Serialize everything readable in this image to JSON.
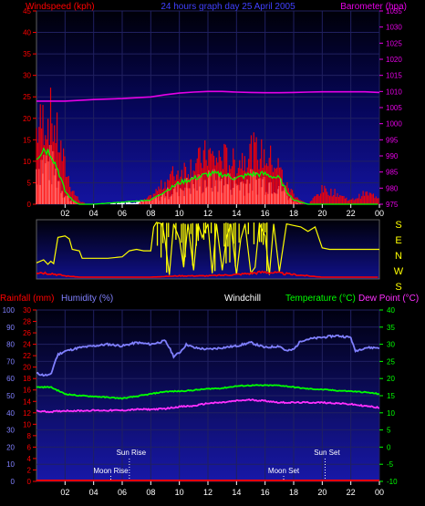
{
  "header": {
    "left": "Windspeed (kph)",
    "center": "24 hours graph day  25 April 2005",
    "right": "Barometer (hpa)"
  },
  "colors": {
    "wind": "#ff0000",
    "gust": "#ff0000",
    "avg_wind": "#00ff00",
    "wind_fill": "#ffffff",
    "barometer": "#e600e6",
    "direction": "#ffff00",
    "direction_speed": "#ff0000",
    "temperature": "#00ff00",
    "dew_point": "#ff30ff",
    "humidity": "#8080ff",
    "rainfall": "#ff0000",
    "windchill": "#ffffff",
    "axis_blue": "#8080ff",
    "axis_green": "#00ff00",
    "axis_red": "#ff0000",
    "axis_magenta": "#ff30ff",
    "grid": "#202060",
    "plot_bg_top": "#000010",
    "plot_bg_bottom": "#1818a0"
  },
  "chart_data": [
    {
      "type": "line",
      "title": "24 hours graph day  25 April 2005",
      "ylabel": "Windspeed (kph)",
      "y2label": "Barometer (hpa)",
      "ylim": [
        0,
        45
      ],
      "y2lim": [
        975,
        1035
      ],
      "y_ticks": [
        "0",
        "5",
        "10",
        "15",
        "20",
        "25",
        "30",
        "35",
        "40",
        "45"
      ],
      "y2_ticks": [
        "975",
        "980",
        "985",
        "990",
        "995",
        "1000",
        "1005",
        "1010",
        "1015",
        "1020",
        "1025",
        "1030",
        "1035"
      ],
      "x_ticks": [
        "02",
        "04",
        "06",
        "08",
        "10",
        "12",
        "14",
        "16",
        "18",
        "20",
        "22",
        "00"
      ],
      "xlim": [
        0,
        24
      ],
      "series": [
        {
          "name": "Barometer (hpa)",
          "axis": "right",
          "x": [
            0,
            2,
            4,
            6,
            8,
            9,
            10,
            11,
            12,
            13,
            14,
            15,
            16,
            17,
            18,
            19,
            20,
            21,
            22,
            23,
            24
          ],
          "values": [
            1007,
            1007,
            1007.5,
            1007.8,
            1008.3,
            1009,
            1009.5,
            1009.8,
            1010,
            1010,
            1009.8,
            1009.7,
            1009.6,
            1009.6,
            1009.7,
            1009.8,
            1009.9,
            1009.9,
            1009.9,
            1009.9,
            1009.7
          ]
        },
        {
          "name": "Wind gust (kph)",
          "axis": "left",
          "x": [
            0,
            0.5,
            1,
            1.5,
            2,
            2.5,
            3,
            3.5,
            4,
            5,
            6,
            7,
            8,
            8.5,
            9,
            9.5,
            10,
            10.5,
            11,
            11.5,
            12,
            12.5,
            13,
            13.5,
            14,
            14.5,
            15,
            15.5,
            16,
            16.5,
            17,
            17.5,
            18,
            18.5,
            19,
            20,
            21,
            22,
            23,
            24
          ],
          "values": [
            20,
            23,
            24,
            18,
            10,
            4,
            1,
            0,
            0,
            0,
            0,
            0,
            2,
            4,
            6,
            8,
            9,
            10,
            11,
            12,
            14,
            12,
            13,
            12,
            11,
            13,
            15,
            14,
            13,
            12,
            10,
            5,
            3,
            1,
            0,
            4,
            3,
            1,
            3,
            2
          ]
        },
        {
          "name": "Average windspeed (kph)",
          "axis": "left",
          "x": [
            0,
            0.5,
            1,
            1.5,
            2,
            2.5,
            3,
            4,
            8,
            9,
            10,
            11,
            12,
            13,
            14,
            15,
            16,
            17,
            17.5,
            18,
            19,
            24
          ],
          "values": [
            11,
            13,
            12,
            8,
            3,
            1,
            0,
            0,
            1,
            3,
            5,
            6,
            7,
            7,
            6,
            7,
            7,
            6,
            3,
            1,
            0,
            0
          ]
        }
      ]
    },
    {
      "type": "scatter",
      "ylabel": "Wind direction",
      "y_ticks": [
        "S",
        "E",
        "N",
        "W",
        "S"
      ],
      "x_ticks": [
        "02",
        "04",
        "06",
        "08",
        "10",
        "12",
        "14",
        "16",
        "18",
        "20",
        "22",
        "00"
      ],
      "xlim": [
        0,
        24
      ],
      "series": [
        {
          "name": "Wind direction (deg)",
          "x": [
            0,
            0.5,
            0.8,
            1,
            1.2,
            1.5,
            2,
            2.3,
            2.5,
            3,
            3.2,
            4,
            5,
            6,
            6.5,
            7,
            7.5,
            8,
            8.2,
            8.4,
            8.8,
            9,
            9.3,
            9.6,
            10,
            10.3,
            10.6,
            11,
            11.3,
            11.6,
            12,
            12.3,
            12.6,
            13,
            13.3,
            13.6,
            14,
            14.3,
            14.6,
            15,
            15.3,
            15.6,
            16,
            16.3,
            16.6,
            17,
            17.5,
            18,
            18.5,
            19,
            19.5,
            20,
            20.5,
            21,
            22,
            23,
            24
          ],
          "values": [
            90,
            110,
            80,
            100,
            85,
            260,
            270,
            250,
            180,
            170,
            120,
            120,
            120,
            130,
            170,
            180,
            170,
            170,
            330,
            360,
            350,
            240,
            10,
            350,
            250,
            60,
            350,
            40,
            350,
            260,
            350,
            20,
            350,
            40,
            260,
            350,
            10,
            250,
            350,
            20,
            60,
            350,
            270,
            10,
            350,
            30,
            350,
            340,
            330,
            300,
            330,
            190,
            180,
            180,
            180,
            180,
            180
          ]
        },
        {
          "name": "Wind speed (kph)",
          "x": [
            0,
            1,
            2,
            3,
            4,
            6,
            8,
            10,
            12,
            14,
            15,
            16,
            17,
            18,
            19,
            20,
            22,
            24
          ],
          "values": [
            4,
            3,
            1,
            0,
            0,
            0,
            0,
            1,
            1,
            2,
            3,
            4,
            3,
            2,
            1,
            0,
            0,
            0
          ]
        }
      ]
    },
    {
      "type": "line",
      "ylabel": "Rainfall (mm)",
      "y_ticks": [
        "0",
        "2",
        "4",
        "6",
        "8",
        "10",
        "12",
        "14",
        "16",
        "18",
        "20",
        "22",
        "24",
        "26",
        "28",
        "30"
      ],
      "y_ticks_humidity": [
        "0",
        "10",
        "20",
        "30",
        "40",
        "50",
        "60",
        "70",
        "80",
        "90",
        "100"
      ],
      "y_ticks_temperature": [
        "-10",
        "-5",
        "0",
        "5",
        "10",
        "15",
        "20",
        "25",
        "30",
        "35",
        "40"
      ],
      "x_ticks": [
        "02",
        "04",
        "06",
        "08",
        "10",
        "12",
        "14",
        "16",
        "18",
        "20",
        "22",
        "00"
      ],
      "xlim": [
        0,
        24
      ],
      "annotations": [
        {
          "text": "Sun Rise",
          "x": 6.5
        },
        {
          "text": "Moon Rise",
          "x": 5.2
        },
        {
          "text": "Moon Set",
          "x": 17.3
        },
        {
          "text": "Sun Set",
          "x": 20.2
        }
      ],
      "legend": [
        "Rainfall (mm)",
        "Humidity (%)",
        "Windchill",
        "Temperature (°C)",
        "Dew Point (°C)"
      ],
      "series": [
        {
          "name": "Humidity (%)",
          "axis": "humidity",
          "x": [
            0,
            0.5,
            1,
            1.3,
            1.5,
            2,
            3,
            4,
            5,
            6,
            7,
            8,
            9,
            9.3,
            9.6,
            10,
            10.5,
            11,
            12,
            13,
            14,
            15,
            16,
            17,
            17.5,
            18,
            18.5,
            19,
            20,
            21,
            22,
            22.3,
            23,
            24
          ],
          "values": [
            63,
            62,
            62,
            70,
            74,
            76,
            78,
            79,
            80,
            79,
            81,
            80,
            82,
            78,
            73,
            75,
            80,
            78,
            77,
            78,
            79,
            81,
            78,
            79,
            76,
            77,
            82,
            83,
            84,
            85,
            84,
            76,
            78,
            78
          ]
        },
        {
          "name": "Temperature (°C)",
          "axis": "temperature",
          "x": [
            0,
            1,
            2,
            3,
            4,
            5,
            6,
            7,
            8,
            9,
            10,
            11,
            12,
            13,
            14,
            15,
            16,
            17,
            18,
            19,
            20,
            21,
            22,
            23,
            24
          ],
          "values": [
            17.5,
            17.5,
            15.5,
            15,
            14.8,
            14.5,
            14.2,
            14.8,
            15.5,
            16.2,
            16.3,
            16.6,
            17,
            17.2,
            17.8,
            18,
            18,
            18,
            17.5,
            17,
            16.8,
            16.5,
            16.3,
            16,
            15.5
          ]
        },
        {
          "name": "Dew Point (°C)",
          "axis": "temperature",
          "x": [
            0,
            1,
            2,
            3,
            4,
            5,
            6,
            7,
            8,
            9,
            10,
            11,
            12,
            13,
            14,
            15,
            16,
            17,
            18,
            19,
            20,
            21,
            22,
            23,
            24
          ],
          "values": [
            10.5,
            10.3,
            10.6,
            10.6,
            10.7,
            10.7,
            10.7,
            11,
            11,
            11.2,
            11.8,
            12,
            12.8,
            13,
            13.5,
            13.8,
            13.5,
            13,
            13,
            13,
            13,
            12.8,
            12.5,
            12,
            11.5
          ]
        },
        {
          "name": "Rainfall (mm)",
          "axis": "rainfall",
          "x": [
            0,
            24
          ],
          "values": [
            0,
            0
          ]
        }
      ]
    }
  ]
}
